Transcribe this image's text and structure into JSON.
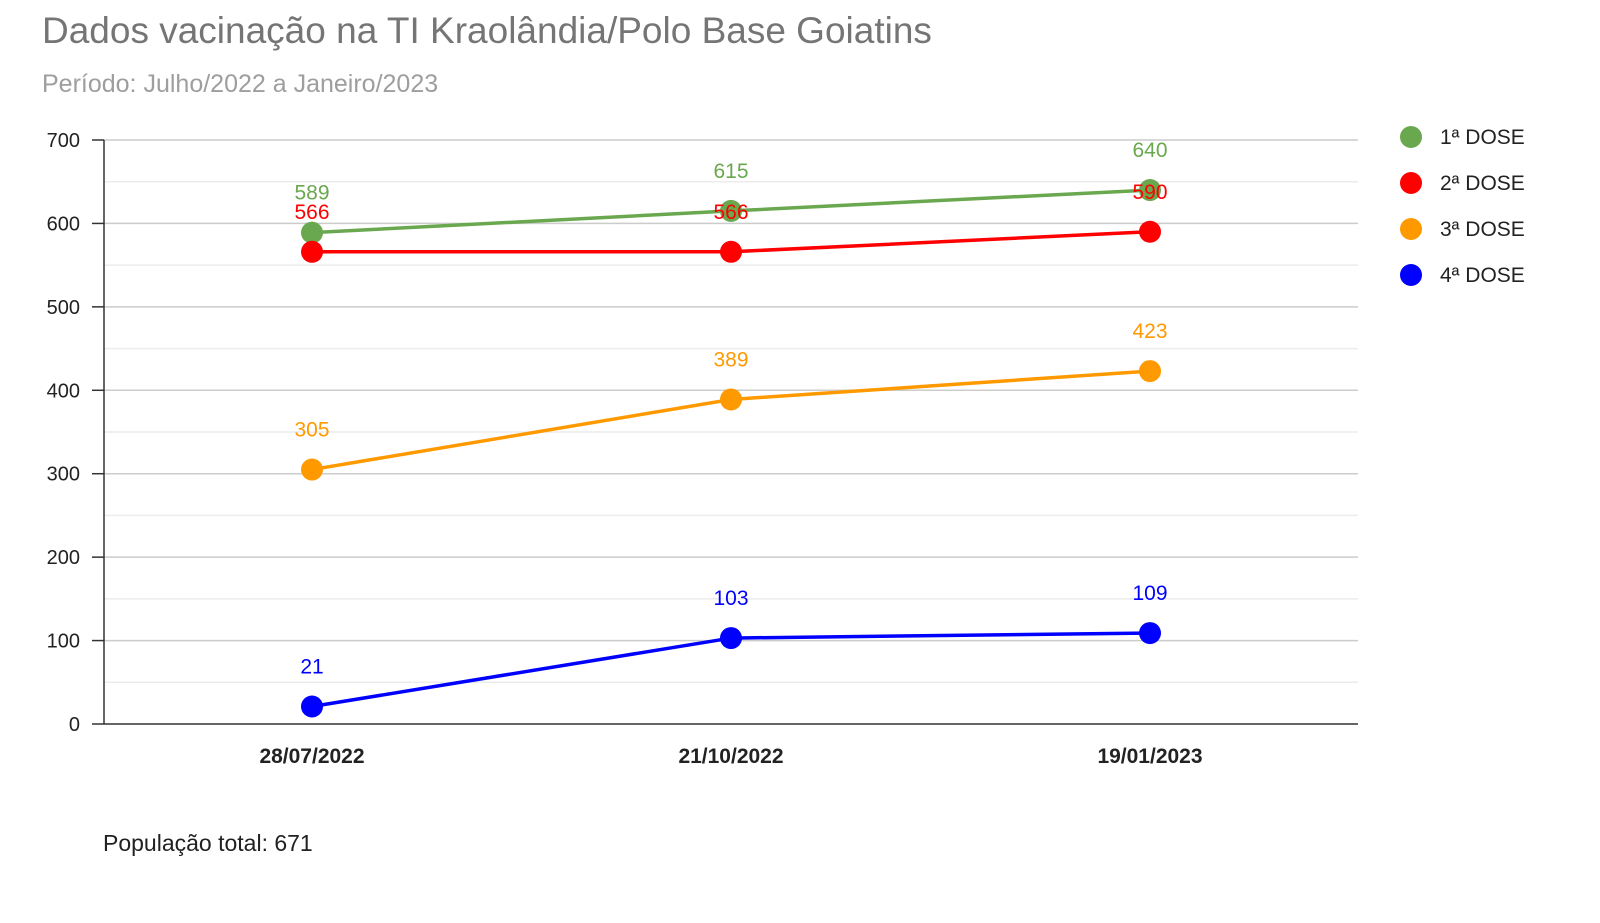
{
  "title": "Dados vacinação na TI Kraolândia/Polo Base Goiatins",
  "subtitle": "Período: Julho/2022 a Janeiro/2023",
  "footnote": "População total: 671",
  "chart_data": {
    "type": "line",
    "title": "Dados vacinação na TI Kraolândia/Polo Base Goiatins",
    "subtitle": "Período: Julho/2022 a Janeiro/2023",
    "xlabel": "",
    "ylabel": "",
    "categories": [
      "28/07/2022",
      "21/10/2022",
      "19/01/2023"
    ],
    "ylim": [
      0,
      700
    ],
    "yticks": [
      0,
      100,
      200,
      300,
      400,
      500,
      600,
      700
    ],
    "grid": true,
    "legend_position": "right",
    "series": [
      {
        "name": "1ª DOSE",
        "color": "#6aa84f",
        "values": [
          589,
          615,
          640
        ]
      },
      {
        "name": "2ª DOSE",
        "color": "#ff0000",
        "values": [
          566,
          566,
          590
        ]
      },
      {
        "name": "3ª DOSE",
        "color": "#ff9900",
        "values": [
          305,
          389,
          423
        ]
      },
      {
        "name": "4ª DOSE",
        "color": "#0000ff",
        "values": [
          21,
          103,
          109
        ]
      }
    ]
  }
}
